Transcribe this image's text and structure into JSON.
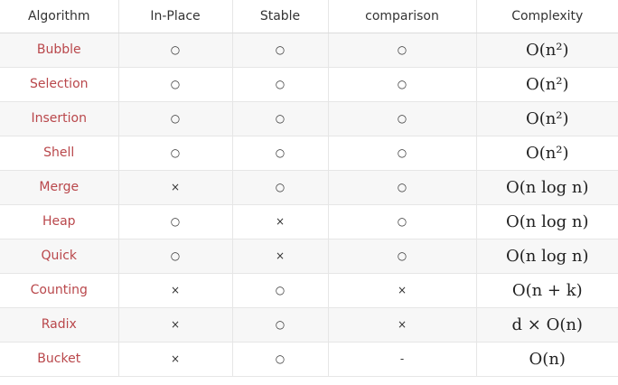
{
  "table": {
    "headers": [
      "Algorithm",
      "In-Place",
      "Stable",
      "comparison",
      "Complexity"
    ],
    "rows": [
      {
        "algorithm": "Bubble",
        "in_place": "○",
        "stable": "○",
        "comparison": "○",
        "complexity": "O(n²)"
      },
      {
        "algorithm": "Selection",
        "in_place": "○",
        "stable": "○",
        "comparison": "○",
        "complexity": "O(n²)"
      },
      {
        "algorithm": "Insertion",
        "in_place": "○",
        "stable": "○",
        "comparison": "○",
        "complexity": "O(n²)"
      },
      {
        "algorithm": "Shell",
        "in_place": "○",
        "stable": "○",
        "comparison": "○",
        "complexity": "O(n²)"
      },
      {
        "algorithm": "Merge",
        "in_place": "×",
        "stable": "○",
        "comparison": "○",
        "complexity": "O(n log n)"
      },
      {
        "algorithm": "Heap",
        "in_place": "○",
        "stable": "×",
        "comparison": "○",
        "complexity": "O(n log n)"
      },
      {
        "algorithm": "Quick",
        "in_place": "○",
        "stable": "×",
        "comparison": "○",
        "complexity": "O(n log n)"
      },
      {
        "algorithm": "Counting",
        "in_place": "×",
        "stable": "○",
        "comparison": "×",
        "complexity": "O(n + k)"
      },
      {
        "algorithm": "Radix",
        "in_place": "×",
        "stable": "○",
        "comparison": "×",
        "complexity": "d × O(n)"
      },
      {
        "algorithm": "Bucket",
        "in_place": "×",
        "stable": "○",
        "comparison": "-",
        "complexity": "O(n)"
      }
    ]
  },
  "colors": {
    "algorithm_text": "#b9474b",
    "odd_row_bg": "#f7f7f7",
    "even_row_bg": "#ffffff"
  }
}
